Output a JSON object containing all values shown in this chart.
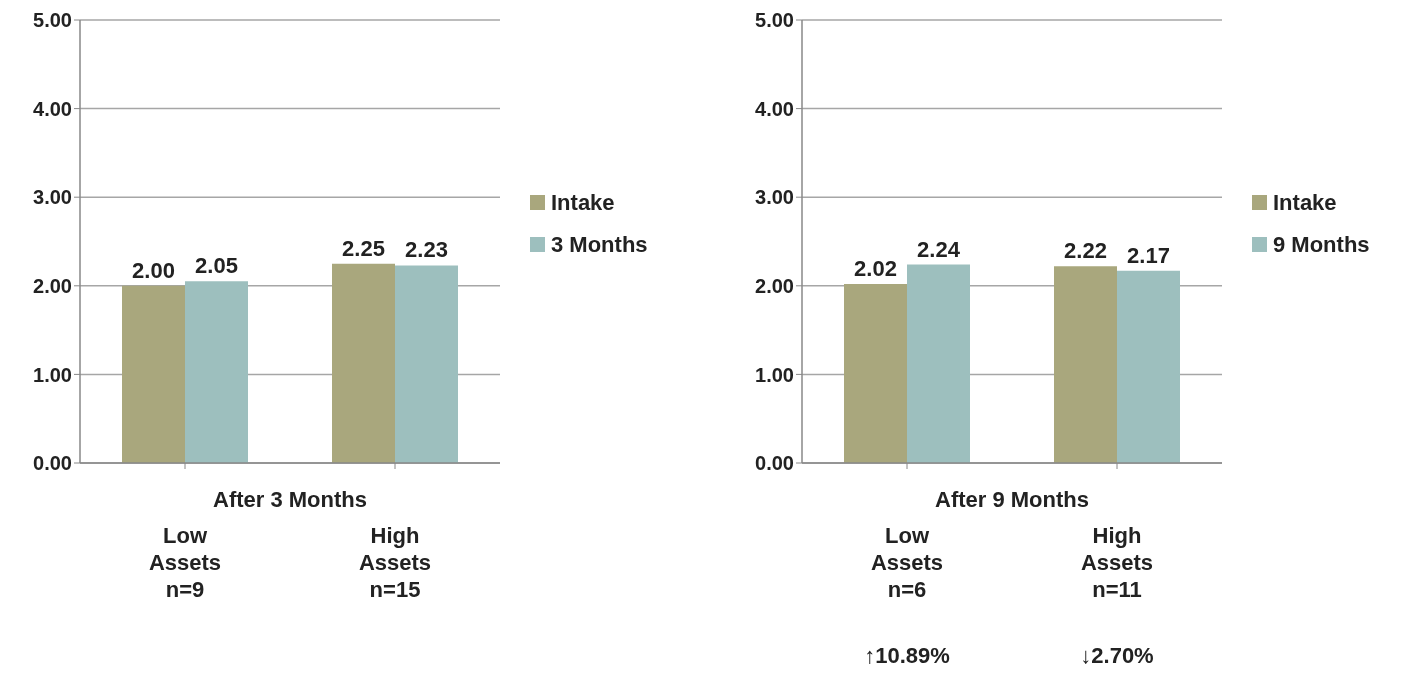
{
  "chart_data": [
    {
      "type": "bar",
      "xlabel": "After 3 Months",
      "categories": [
        "Low\nAssets\nn=9",
        "High\nAssets\nn=15"
      ],
      "series": [
        {
          "name": "Intake",
          "color": "#a9a77d",
          "values": [
            2.0,
            2.25
          ],
          "value_labels": [
            "2.00",
            "2.25"
          ]
        },
        {
          "name": "3 Months",
          "color": "#9dbfbe",
          "values": [
            2.05,
            2.23
          ],
          "value_labels": [
            "2.05",
            "2.23"
          ]
        }
      ],
      "ylim": [
        0,
        5
      ],
      "yticks": [
        {
          "value": 0,
          "label": "0.00"
        },
        {
          "value": 1,
          "label": "1.00"
        },
        {
          "value": 2,
          "label": "2.00"
        },
        {
          "value": 3,
          "label": "3.00"
        },
        {
          "value": 4,
          "label": "4.00"
        },
        {
          "value": 5,
          "label": "5.00"
        }
      ],
      "grid": "y",
      "legend": "right"
    },
    {
      "type": "bar",
      "xlabel": "After 9 Months",
      "categories": [
        "Low\nAssets\nn=6",
        "High\nAssets\nn=11"
      ],
      "series": [
        {
          "name": "Intake",
          "color": "#a9a77d",
          "values": [
            2.02,
            2.22
          ],
          "value_labels": [
            "2.02",
            "2.22"
          ]
        },
        {
          "name": "9 Months",
          "color": "#9dbfbe",
          "values": [
            2.24,
            2.17
          ],
          "value_labels": [
            "2.24",
            "2.17"
          ]
        }
      ],
      "ylim": [
        0,
        5
      ],
      "yticks": [
        {
          "value": 0,
          "label": "0.00"
        },
        {
          "value": 1,
          "label": "1.00"
        },
        {
          "value": 2,
          "label": "2.00"
        },
        {
          "value": 3,
          "label": "3.00"
        },
        {
          "value": 4,
          "label": "4.00"
        },
        {
          "value": 5,
          "label": "5.00"
        }
      ],
      "grid": "y",
      "legend": "right",
      "annotations": [
        "↑10.89%",
        "↓2.70%"
      ]
    }
  ]
}
